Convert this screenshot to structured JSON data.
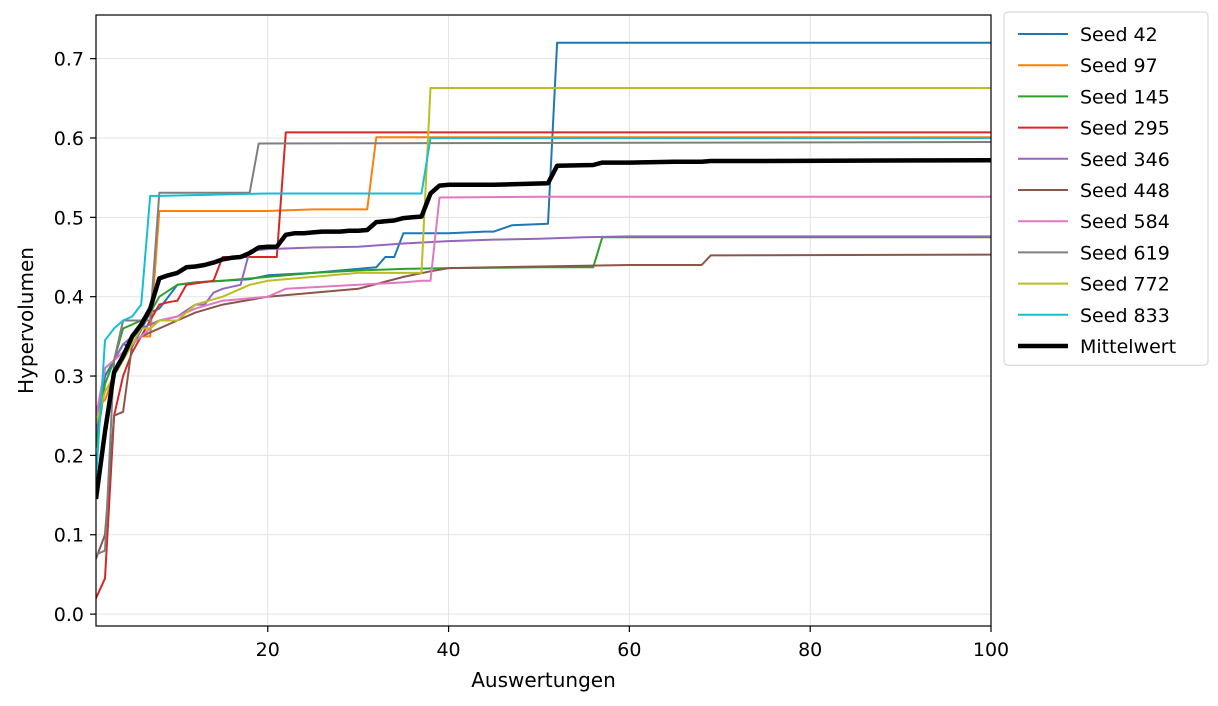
{
  "chart_data": {
    "type": "line",
    "title": "",
    "xlabel": "Auswertungen",
    "ylabel": "Hypervolumen",
    "xlim": [
      1,
      100
    ],
    "ylim": [
      -0.015,
      0.755
    ],
    "xticks": [
      20,
      40,
      60,
      80,
      100
    ],
    "yticks": [
      0.0,
      0.1,
      0.2,
      0.3,
      0.4,
      0.5,
      0.6,
      0.7
    ],
    "xtick_labels": [
      "20",
      "40",
      "60",
      "80",
      "100"
    ],
    "ytick_labels": [
      "0.0",
      "0.1",
      "0.2",
      "0.3",
      "0.4",
      "0.5",
      "0.6",
      "0.7"
    ],
    "grid": true,
    "legend_position": "outside-right-top",
    "series": [
      {
        "name": "Seed 42",
        "color": "#1f77b4",
        "x": [
          1,
          2,
          3,
          4,
          5,
          7,
          8,
          10,
          12,
          15,
          18,
          20,
          25,
          30,
          32,
          33,
          34,
          35,
          40,
          44,
          45,
          47,
          51,
          52,
          100
        ],
        "y": [
          0.22,
          0.3,
          0.32,
          0.34,
          0.337,
          0.38,
          0.385,
          0.415,
          0.418,
          0.42,
          0.422,
          0.427,
          0.43,
          0.435,
          0.437,
          0.45,
          0.45,
          0.48,
          0.48,
          0.482,
          0.482,
          0.49,
          0.492,
          0.72,
          0.72
        ]
      },
      {
        "name": "Seed 97",
        "color": "#ff7f0e",
        "x": [
          1,
          2,
          3,
          4,
          5,
          6,
          7,
          8,
          10,
          20,
          25,
          31,
          32,
          100
        ],
        "y": [
          0.26,
          0.27,
          0.3,
          0.33,
          0.34,
          0.35,
          0.35,
          0.508,
          0.508,
          0.508,
          0.51,
          0.51,
          0.601,
          0.601
        ]
      },
      {
        "name": "Seed 145",
        "color": "#2ca02c",
        "x": [
          1,
          2,
          3,
          4,
          5,
          6,
          7,
          8,
          10,
          12,
          15,
          20,
          25,
          30,
          35,
          40,
          50,
          56,
          57,
          100
        ],
        "y": [
          0.21,
          0.29,
          0.32,
          0.36,
          0.365,
          0.37,
          0.38,
          0.4,
          0.415,
          0.418,
          0.42,
          0.425,
          0.43,
          0.433,
          0.435,
          0.436,
          0.437,
          0.437,
          0.475,
          0.475
        ]
      },
      {
        "name": "Seed 295",
        "color": "#d62728",
        "x": [
          1,
          2,
          3,
          4,
          5,
          6,
          7,
          8,
          9,
          10,
          11,
          14,
          15,
          17,
          21,
          22,
          100
        ],
        "y": [
          0.02,
          0.045,
          0.25,
          0.3,
          0.33,
          0.35,
          0.37,
          0.39,
          0.393,
          0.395,
          0.415,
          0.42,
          0.45,
          0.45,
          0.45,
          0.607,
          0.607
        ]
      },
      {
        "name": "Seed 346",
        "color": "#9467bd",
        "x": [
          1,
          2,
          3,
          4,
          5,
          6,
          7,
          8,
          10,
          12,
          13,
          14,
          15,
          17,
          18,
          20,
          25,
          30,
          35,
          40,
          45,
          50,
          55,
          60,
          100
        ],
        "y": [
          0.23,
          0.31,
          0.32,
          0.34,
          0.35,
          0.36,
          0.365,
          0.37,
          0.375,
          0.39,
          0.39,
          0.405,
          0.41,
          0.415,
          0.458,
          0.46,
          0.462,
          0.463,
          0.467,
          0.47,
          0.472,
          0.473,
          0.475,
          0.476,
          0.476
        ]
      },
      {
        "name": "Seed 448",
        "color": "#8c564b",
        "x": [
          1,
          2,
          3,
          4,
          5,
          6,
          7,
          8,
          10,
          12,
          15,
          20,
          25,
          30,
          35,
          38,
          40,
          50,
          60,
          68,
          69,
          100
        ],
        "y": [
          0.07,
          0.1,
          0.25,
          0.255,
          0.34,
          0.35,
          0.355,
          0.36,
          0.37,
          0.38,
          0.39,
          0.4,
          0.405,
          0.41,
          0.425,
          0.432,
          0.436,
          0.438,
          0.44,
          0.44,
          0.452,
          0.453
        ]
      },
      {
        "name": "Seed 584",
        "color": "#e377c2",
        "x": [
          1,
          2,
          3,
          4,
          5,
          7,
          8,
          10,
          12,
          15,
          20,
          22,
          25,
          30,
          35,
          37,
          38,
          39,
          50,
          60,
          100
        ],
        "y": [
          0.25,
          0.31,
          0.32,
          0.33,
          0.34,
          0.36,
          0.37,
          0.375,
          0.385,
          0.395,
          0.4,
          0.41,
          0.412,
          0.415,
          0.418,
          0.42,
          0.42,
          0.525,
          0.526,
          0.526,
          0.526
        ]
      },
      {
        "name": "Seed 619",
        "color": "#7f7f7f",
        "x": [
          1,
          2,
          3,
          4,
          5,
          7,
          8,
          10,
          15,
          18,
          19,
          100
        ],
        "y": [
          0.075,
          0.08,
          0.32,
          0.37,
          0.37,
          0.37,
          0.531,
          0.531,
          0.531,
          0.531,
          0.593,
          0.595
        ]
      },
      {
        "name": "Seed 772",
        "color": "#bcbd22",
        "x": [
          1,
          2,
          3,
          4,
          5,
          6,
          7,
          8,
          10,
          12,
          15,
          17,
          18,
          20,
          25,
          30,
          35,
          37,
          38,
          100
        ],
        "y": [
          0.24,
          0.28,
          0.3,
          0.32,
          0.34,
          0.36,
          0.36,
          0.37,
          0.37,
          0.39,
          0.4,
          0.41,
          0.415,
          0.42,
          0.425,
          0.43,
          0.43,
          0.43,
          0.663,
          0.663
        ]
      },
      {
        "name": "Seed 833",
        "color": "#17becf",
        "x": [
          1,
          2,
          3,
          4,
          5,
          6,
          7,
          8,
          20,
          30,
          37,
          38,
          100
        ],
        "y": [
          0.17,
          0.345,
          0.36,
          0.37,
          0.375,
          0.39,
          0.527,
          0.527,
          0.53,
          0.53,
          0.53,
          0.6,
          0.6
        ]
      },
      {
        "name": "Mittelwert",
        "color": "#000000",
        "bold": true,
        "x": [
          1,
          2,
          3,
          4,
          5,
          6,
          7,
          8,
          9,
          10,
          11,
          12,
          13,
          14,
          15,
          16,
          17,
          18,
          19,
          20,
          21,
          22,
          23,
          24,
          25,
          26,
          27,
          28,
          29,
          30,
          31,
          32,
          33,
          34,
          35,
          36,
          37,
          38,
          39,
          40,
          45,
          48,
          51,
          52,
          56,
          57,
          60,
          65,
          68,
          69,
          75,
          100
        ],
        "y": [
          0.145,
          0.23,
          0.305,
          0.325,
          0.35,
          0.365,
          0.385,
          0.423,
          0.427,
          0.43,
          0.437,
          0.438,
          0.44,
          0.443,
          0.447,
          0.449,
          0.45,
          0.455,
          0.462,
          0.463,
          0.463,
          0.478,
          0.48,
          0.48,
          0.481,
          0.482,
          0.482,
          0.482,
          0.483,
          0.483,
          0.484,
          0.494,
          0.495,
          0.496,
          0.499,
          0.5,
          0.501,
          0.53,
          0.54,
          0.541,
          0.541,
          0.542,
          0.543,
          0.565,
          0.566,
          0.569,
          0.569,
          0.57,
          0.57,
          0.571,
          0.571,
          0.572
        ]
      }
    ]
  }
}
